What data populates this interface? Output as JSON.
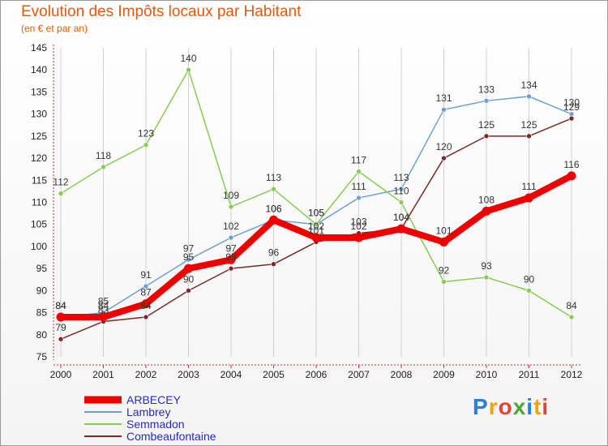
{
  "header": {
    "title": "Evolution des Impôts locaux par Habitant",
    "subtitle": "(en € et par an)"
  },
  "logo": {
    "text": "Proxiti",
    "colors": [
      "#2a7de1",
      "#f2a20c",
      "#e0443c",
      "#4aa832"
    ]
  },
  "chart_data": {
    "type": "line",
    "title": "Evolution des Impôts locaux par Habitant",
    "subtitle": "(en € et par an)",
    "xlabel": "",
    "ylabel": "",
    "x": [
      "2000",
      "2001",
      "2002",
      "2003",
      "2004",
      "2005",
      "2006",
      "2007",
      "2008",
      "2009",
      "2010",
      "2011",
      "2012"
    ],
    "ylim": [
      75,
      145
    ],
    "yticks": [
      75,
      80,
      85,
      90,
      95,
      100,
      105,
      110,
      115,
      120,
      125,
      130,
      135,
      140,
      145
    ],
    "legend_position": "bottom-left",
    "series": [
      {
        "name": "ARBECEY",
        "color": "#ee0000",
        "values": [
          84,
          84,
          87,
          95,
          97,
          106,
          102,
          102,
          104,
          101,
          108,
          111,
          116
        ]
      },
      {
        "name": "Lambrey",
        "color": "#6fa0d0",
        "values": [
          84,
          85,
          91,
          97,
          102,
          106,
          105,
          111,
          113,
          131,
          133,
          134,
          130
        ]
      },
      {
        "name": "Semmadon",
        "color": "#88cc55",
        "values": [
          112,
          118,
          123,
          140,
          109,
          113,
          105,
          117,
          110,
          92,
          93,
          90,
          84
        ]
      },
      {
        "name": "Combeaufontaine",
        "color": "#7a2a2a",
        "values": [
          79,
          83,
          84,
          90,
          95,
          96,
          101,
          103,
          104,
          120,
          125,
          125,
          129
        ]
      }
    ]
  }
}
